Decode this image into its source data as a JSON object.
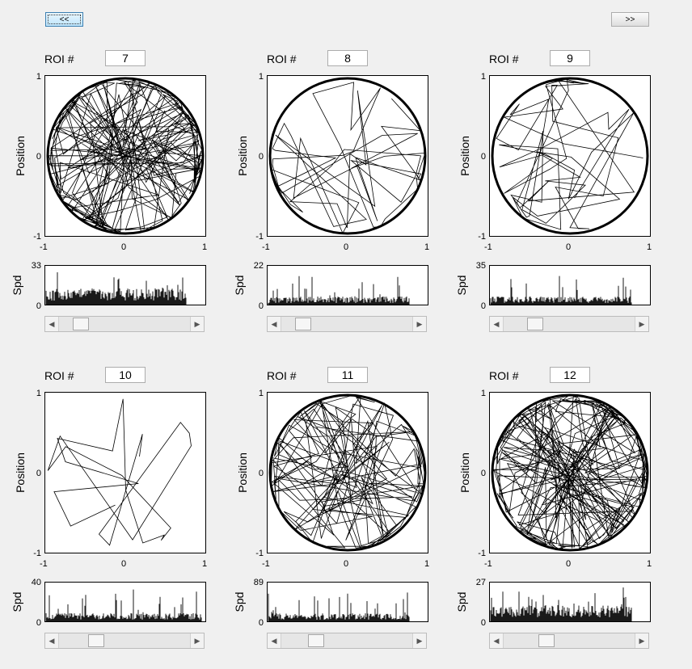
{
  "nav": {
    "prev_label": "<<",
    "next_label": ">>"
  },
  "panel_common": {
    "roi_label": "ROI #",
    "position_label": "Position",
    "speed_label": "Spd",
    "pos_ticks": [
      "1",
      "0",
      "-1"
    ],
    "x_ticks": [
      "-1",
      "0",
      "1"
    ]
  },
  "panels": [
    {
      "roi": "7",
      "spd_max": "33",
      "spd_min": "0",
      "slider_value": 0.12
    },
    {
      "roi": "8",
      "spd_max": "22",
      "spd_min": "0",
      "slider_value": 0.12
    },
    {
      "roi": "9",
      "spd_max": "35",
      "spd_min": "0",
      "slider_value": 0.2
    },
    {
      "roi": "10",
      "spd_max": "40",
      "spd_min": "0",
      "slider_value": 0.25
    },
    {
      "roi": "11",
      "spd_max": "89",
      "spd_min": "0",
      "slider_value": 0.23
    },
    {
      "roi": "12",
      "spd_max": "27",
      "spd_min": "0",
      "slider_value": 0.3
    }
  ]
}
